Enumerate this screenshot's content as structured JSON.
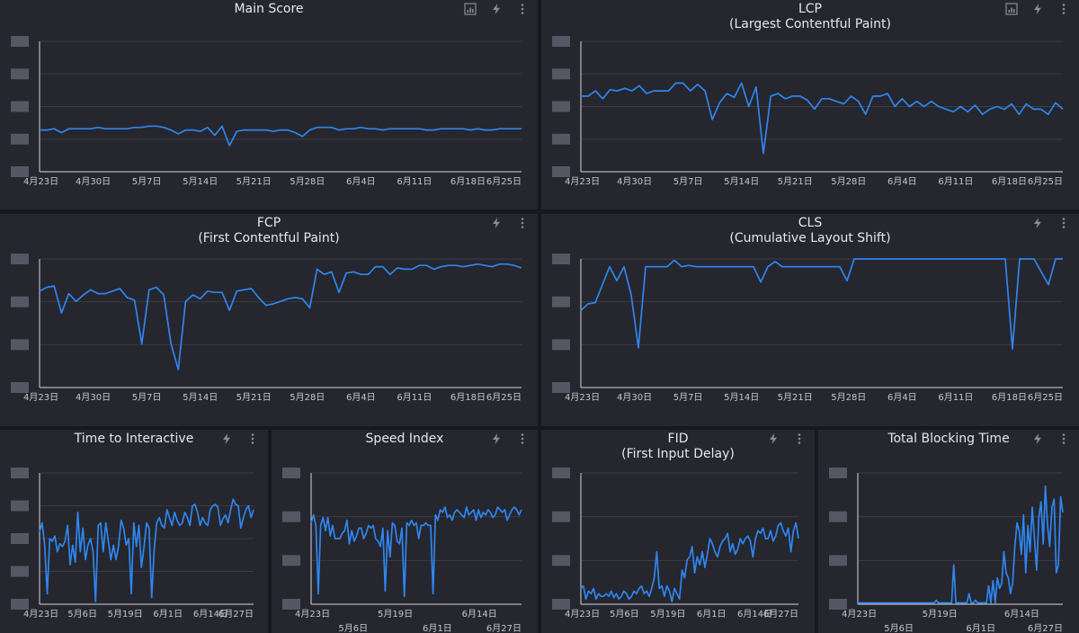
{
  "colors": {
    "background": "#18191f",
    "panel": "#25262e",
    "series": "#2f86ee",
    "grid": "#3a3c46"
  },
  "icons": {
    "chart": "chart-icon",
    "lightning": "lightning-icon",
    "menu": "more-vertical-icon"
  },
  "chart_data": [
    {
      "id": "main-score",
      "type": "line",
      "title": "Main Score",
      "subtitle": "",
      "x_ticks": [
        "4月23日",
        "4月30日",
        "5月7日",
        "5月14日",
        "5月21日",
        "5月28日",
        "6月4日",
        "6月11日",
        "6月18日",
        "6月25日"
      ],
      "y_ticks": 5,
      "y_tick_labels_obscured": true,
      "ylim": [
        0,
        100
      ],
      "grid": true,
      "series": [
        {
          "values": [
            32,
            32,
            33,
            30,
            33,
            33,
            33,
            33,
            34,
            33,
            33,
            33,
            33,
            34,
            34,
            35,
            35,
            34,
            32,
            29,
            32,
            32,
            31,
            34,
            28,
            35,
            20,
            31,
            32,
            32,
            32,
            32,
            31,
            32,
            32,
            30,
            27,
            32,
            34,
            34,
            34,
            32,
            33,
            33,
            34,
            33,
            33,
            32,
            33,
            33,
            33,
            33,
            33,
            32,
            32,
            33,
            33,
            33,
            33,
            32,
            33,
            32,
            32,
            33,
            33,
            33,
            33
          ]
        }
      ]
    },
    {
      "id": "lcp",
      "type": "line",
      "title": "LCP",
      "subtitle": "(Largest Contentful Paint)",
      "x_ticks": [
        "4月23日",
        "4月30日",
        "5月7日",
        "5月14日",
        "5月21日",
        "5月28日",
        "6月4日",
        "6月11日",
        "6月18日",
        "6月25日"
      ],
      "y_ticks": 5,
      "y_tick_labels_obscured": true,
      "ylim": [
        0,
        100
      ],
      "grid": true,
      "series": [
        {
          "values": [
            58,
            58,
            62,
            56,
            63,
            62,
            64,
            62,
            66,
            60,
            62,
            62,
            62,
            68,
            68,
            62,
            67,
            62,
            40,
            53,
            60,
            57,
            68,
            50,
            65,
            14,
            58,
            60,
            56,
            58,
            58,
            55,
            48,
            56,
            56,
            54,
            52,
            58,
            54,
            44,
            58,
            58,
            60,
            50,
            56,
            50,
            54,
            50,
            54,
            50,
            48,
            46,
            50,
            46,
            51,
            44,
            48,
            50,
            48,
            52,
            44,
            52,
            48,
            48,
            44,
            53,
            48
          ]
        }
      ]
    },
    {
      "id": "fcp",
      "type": "line",
      "title": "FCP",
      "subtitle": "(First Contentful Paint)",
      "x_ticks": [
        "4月23日",
        "4月30日",
        "5月7日",
        "5月14日",
        "5月21日",
        "5月28日",
        "6月4日",
        "6月11日",
        "6月18日",
        "6月25日"
      ],
      "y_ticks": 4,
      "y_tick_labels_obscured": true,
      "ylim": [
        0,
        100
      ],
      "grid": true,
      "series": [
        {
          "values": [
            75,
            78,
            79,
            58,
            73,
            67,
            72,
            76,
            73,
            73,
            75,
            77,
            70,
            68,
            34,
            76,
            78,
            72,
            34,
            14,
            67,
            72,
            69,
            75,
            74,
            74,
            60,
            75,
            76,
            77,
            70,
            64,
            65,
            67,
            69,
            70,
            69,
            62,
            92,
            88,
            90,
            74,
            89,
            90,
            88,
            88,
            94,
            94,
            88,
            93,
            92,
            92,
            95,
            95,
            92,
            94,
            95,
            95,
            94,
            95,
            96,
            95,
            94,
            96,
            96,
            95,
            93
          ]
        }
      ]
    },
    {
      "id": "cls",
      "type": "line",
      "title": "CLS",
      "subtitle": "(Cumulative Layout Shift)",
      "x_ticks": [
        "4月23日",
        "4月30日",
        "5月7日",
        "5月14日",
        "5月21日",
        "5月28日",
        "6月4日",
        "6月11日",
        "6月18日",
        "6月25日"
      ],
      "y_ticks": 4,
      "y_tick_labels_obscured": true,
      "ylim": [
        0,
        100
      ],
      "grid": true,
      "series": [
        {
          "values": [
            60,
            65,
            66,
            80,
            94,
            83,
            94,
            72,
            31,
            94,
            94,
            94,
            94,
            99,
            94,
            95,
            94,
            94,
            94,
            94,
            94,
            94,
            94,
            94,
            94,
            82,
            94,
            98,
            94,
            94,
            94,
            94,
            94,
            94,
            94,
            94,
            94,
            83,
            100,
            100,
            100,
            100,
            100,
            100,
            100,
            100,
            100,
            100,
            100,
            100,
            100,
            100,
            100,
            100,
            100,
            100,
            100,
            100,
            100,
            100,
            30,
            100,
            100,
            100,
            90,
            80,
            100,
            100
          ]
        }
      ]
    },
    {
      "id": "tti",
      "type": "line",
      "title": "Time to Interactive",
      "subtitle": "",
      "x_ticks": [
        "4月23日",
        "5月6日",
        "5月19日",
        "6月1日",
        "6月14日",
        "6月27日"
      ],
      "y_ticks": 5,
      "y_tick_labels_obscured": true,
      "ylim": [
        0,
        100
      ],
      "grid": true,
      "series": [
        {
          "values": [
            55,
            62,
            45,
            8,
            50,
            48,
            52,
            40,
            46,
            44,
            48,
            60,
            30,
            45,
            32,
            70,
            40,
            58,
            34,
            45,
            50,
            40,
            2,
            60,
            62,
            40,
            62,
            48,
            34,
            45,
            34,
            44,
            64,
            58,
            45,
            50,
            8,
            62,
            44,
            60,
            28,
            44,
            62,
            58,
            5,
            42,
            62,
            66,
            60,
            58,
            72,
            66,
            60,
            70,
            64,
            60,
            62,
            70,
            66,
            60,
            75,
            76,
            70,
            60,
            66,
            62,
            60,
            72,
            75,
            76,
            74,
            60,
            65,
            68,
            62,
            72,
            80,
            76,
            75,
            58,
            66,
            72,
            75,
            66,
            72
          ]
        }
      ]
    },
    {
      "id": "speed-index",
      "type": "line",
      "title": "Speed Index",
      "subtitle": "",
      "x_ticks": [
        "4月23日",
        "5月6日",
        "5月19日",
        "6月1日",
        "6月14日",
        "6月27日"
      ],
      "y_ticks": 4,
      "y_tick_labels_obscured": true,
      "ylim": [
        0,
        100
      ],
      "grid": true,
      "series": [
        {
          "values": [
            62,
            68,
            60,
            8,
            60,
            66,
            56,
            66,
            52,
            60,
            50,
            50,
            50,
            54,
            56,
            64,
            46,
            56,
            48,
            52,
            58,
            58,
            50,
            54,
            60,
            58,
            60,
            50,
            48,
            44,
            58,
            10,
            56,
            36,
            62,
            60,
            48,
            46,
            58,
            6,
            62,
            60,
            64,
            60,
            62,
            50,
            60,
            60,
            62,
            60,
            60,
            8,
            68,
            64,
            72,
            70,
            74,
            66,
            68,
            64,
            70,
            72,
            70,
            68,
            66,
            74,
            68,
            70,
            72,
            64,
            72,
            66,
            70,
            68,
            72,
            70,
            66,
            68,
            74,
            72,
            70,
            72,
            64,
            68,
            72,
            74,
            72,
            68,
            72
          ]
        }
      ]
    },
    {
      "id": "fid",
      "type": "line",
      "title": "FID",
      "subtitle": "(First Input Delay)",
      "x_ticks": [
        "4月23日",
        "5月6日",
        "5月19日",
        "6月1日",
        "6月14日",
        "6月27日"
      ],
      "y_ticks": 4,
      "y_tick_labels_obscured": true,
      "ylim": [
        0,
        100
      ],
      "grid": true,
      "series": [
        {
          "values": [
            12,
            14,
            4,
            10,
            8,
            12,
            4,
            8,
            6,
            6,
            8,
            6,
            10,
            5,
            8,
            4,
            6,
            10,
            8,
            4,
            6,
            10,
            8,
            12,
            14,
            8,
            10,
            6,
            12,
            20,
            40,
            12,
            14,
            6,
            14,
            10,
            2,
            12,
            8,
            4,
            26,
            20,
            34,
            36,
            44,
            24,
            36,
            30,
            40,
            28,
            38,
            50,
            46,
            40,
            36,
            44,
            48,
            50,
            54,
            40,
            46,
            38,
            42,
            50,
            46,
            50,
            52,
            48,
            36,
            50,
            56,
            54,
            58,
            50,
            50,
            56,
            48,
            52,
            60,
            62,
            56,
            52,
            58,
            40,
            56,
            62,
            50
          ]
        }
      ]
    },
    {
      "id": "tbt",
      "type": "line",
      "title": "Total Blocking Time",
      "subtitle": "",
      "x_ticks": [
        "4月23日",
        "5月6日",
        "5月19日",
        "6月1日",
        "6月14日",
        "6月27日"
      ],
      "y_ticks": 4,
      "y_tick_labels_obscured": true,
      "ylim": [
        0,
        100
      ],
      "grid": true,
      "series": [
        {
          "values": [
            1,
            1,
            1,
            1,
            1,
            1,
            1,
            1,
            1,
            1,
            1,
            1,
            1,
            1,
            1,
            1,
            1,
            1,
            1,
            1,
            1,
            1,
            1,
            1,
            1,
            1,
            1,
            1,
            1,
            1,
            1,
            1,
            1,
            1,
            1,
            1,
            3,
            1,
            1,
            1,
            1,
            1,
            1,
            1,
            30,
            1,
            1,
            1,
            1,
            1,
            1,
            8,
            1,
            1,
            3,
            1,
            1,
            1,
            1,
            1,
            14,
            1,
            18,
            1,
            20,
            12,
            16,
            40,
            24,
            20,
            8,
            16,
            44,
            62,
            56,
            38,
            68,
            24,
            60,
            40,
            74,
            50,
            26,
            66,
            78,
            46,
            90,
            60,
            44,
            74,
            80,
            24,
            30,
            82,
            70
          ]
        }
      ]
    }
  ]
}
